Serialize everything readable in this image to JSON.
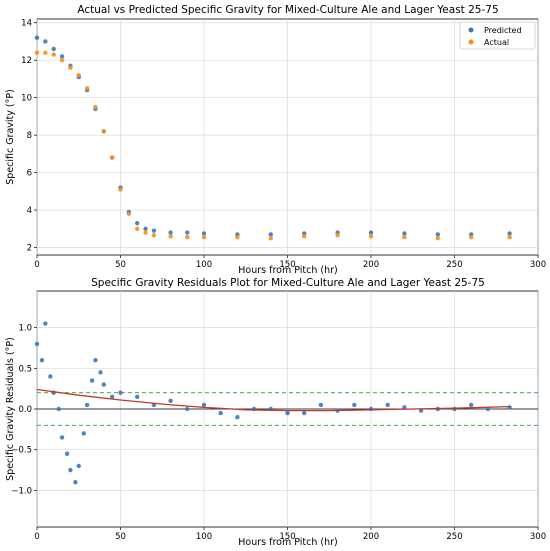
{
  "chart_data": [
    {
      "type": "scatter",
      "title": "Actual vs Predicted Specific Gravity for Mixed-Culture Ale and Lager Yeast 25-75",
      "xlabel": "Hours from Pitch (hr)",
      "ylabel": "Specific Gravity (°P)",
      "xlim": [
        0,
        300
      ],
      "ylim": [
        1.6,
        14.2
      ],
      "x_ticks": [
        "0",
        "50",
        "100",
        "150",
        "200",
        "250",
        "300"
      ],
      "y_ticks": [
        "2",
        "4",
        "6",
        "8",
        "10",
        "12",
        "14"
      ],
      "grid": true,
      "legend_position": "top-right",
      "series": [
        {
          "name": "Predicted",
          "color": "#3a78b7",
          "x": [
            0,
            5,
            10,
            15,
            20,
            25,
            30,
            35,
            40,
            45,
            50,
            55,
            60,
            65,
            70,
            80,
            90,
            100,
            120,
            140,
            160,
            180,
            200,
            220,
            240,
            260,
            283
          ],
          "y": [
            13.2,
            13.0,
            12.6,
            12.2,
            11.7,
            11.1,
            10.4,
            9.4,
            8.2,
            6.8,
            5.2,
            3.9,
            3.3,
            3.0,
            2.9,
            2.8,
            2.8,
            2.75,
            2.7,
            2.7,
            2.75,
            2.8,
            2.8,
            2.75,
            2.7,
            2.7,
            2.75
          ]
        },
        {
          "name": "Actual",
          "color": "#ff8c1a",
          "x": [
            0,
            5,
            10,
            15,
            20,
            25,
            30,
            35,
            40,
            45,
            50,
            55,
            60,
            65,
            70,
            80,
            90,
            100,
            120,
            140,
            160,
            180,
            200,
            220,
            240,
            260,
            283
          ],
          "y": [
            12.4,
            12.4,
            12.3,
            12.0,
            11.6,
            11.2,
            10.5,
            9.5,
            8.2,
            6.8,
            5.1,
            3.8,
            3.0,
            2.8,
            2.65,
            2.6,
            2.55,
            2.55,
            2.55,
            2.5,
            2.6,
            2.65,
            2.6,
            2.55,
            2.5,
            2.55,
            2.55
          ]
        }
      ]
    },
    {
      "type": "scatter",
      "title": "Specific Gravity Residuals Plot for Mixed-Culture Ale and Lager Yeast 25-75",
      "xlabel": "Hours from Pitch (hr)",
      "ylabel": "Specific Gravity Residuals (°P)",
      "xlim": [
        0,
        300
      ],
      "ylim": [
        -1.45,
        1.45
      ],
      "x_ticks": [
        "0",
        "50",
        "100",
        "150",
        "200",
        "250",
        "300"
      ],
      "y_ticks": [
        "−1.0",
        "−0.5",
        "0.0",
        "0.5",
        "1.0"
      ],
      "grid": true,
      "reference_lines": {
        "zero": 0.0,
        "upper": 0.2,
        "lower": -0.2,
        "zero_color": "#000000",
        "band_color": "#2ca02c"
      },
      "trend_color": "#c0392b",
      "point_color": "#3a78b7",
      "series": [
        {
          "x": [
            0,
            3,
            5,
            8,
            10,
            13,
            15,
            18,
            20,
            23,
            25,
            28,
            30,
            33,
            35,
            38,
            40,
            45,
            50,
            60,
            70,
            80,
            90,
            100,
            110,
            120,
            130,
            140,
            150,
            160,
            170,
            180,
            190,
            200,
            210,
            220,
            230,
            240,
            250,
            260,
            270,
            283
          ],
          "y": [
            0.8,
            0.6,
            1.05,
            0.4,
            0.2,
            0.0,
            -0.35,
            -0.55,
            -0.75,
            -0.9,
            -0.7,
            -0.3,
            0.05,
            0.35,
            0.6,
            0.45,
            0.3,
            0.15,
            0.2,
            0.15,
            0.05,
            0.1,
            0.0,
            0.05,
            -0.05,
            -0.1,
            0.0,
            0.0,
            -0.05,
            -0.05,
            0.05,
            -0.02,
            0.05,
            0.0,
            0.05,
            0.02,
            -0.02,
            0.0,
            0.0,
            0.05,
            0.0,
            0.02
          ]
        }
      ],
      "trend": {
        "x": [
          0,
          25,
          50,
          75,
          100,
          125,
          150,
          175,
          200,
          225,
          250,
          283
        ],
        "y": [
          0.24,
          0.17,
          0.11,
          0.06,
          0.02,
          -0.01,
          -0.02,
          -0.02,
          -0.01,
          0.0,
          0.01,
          0.03
        ]
      }
    }
  ]
}
